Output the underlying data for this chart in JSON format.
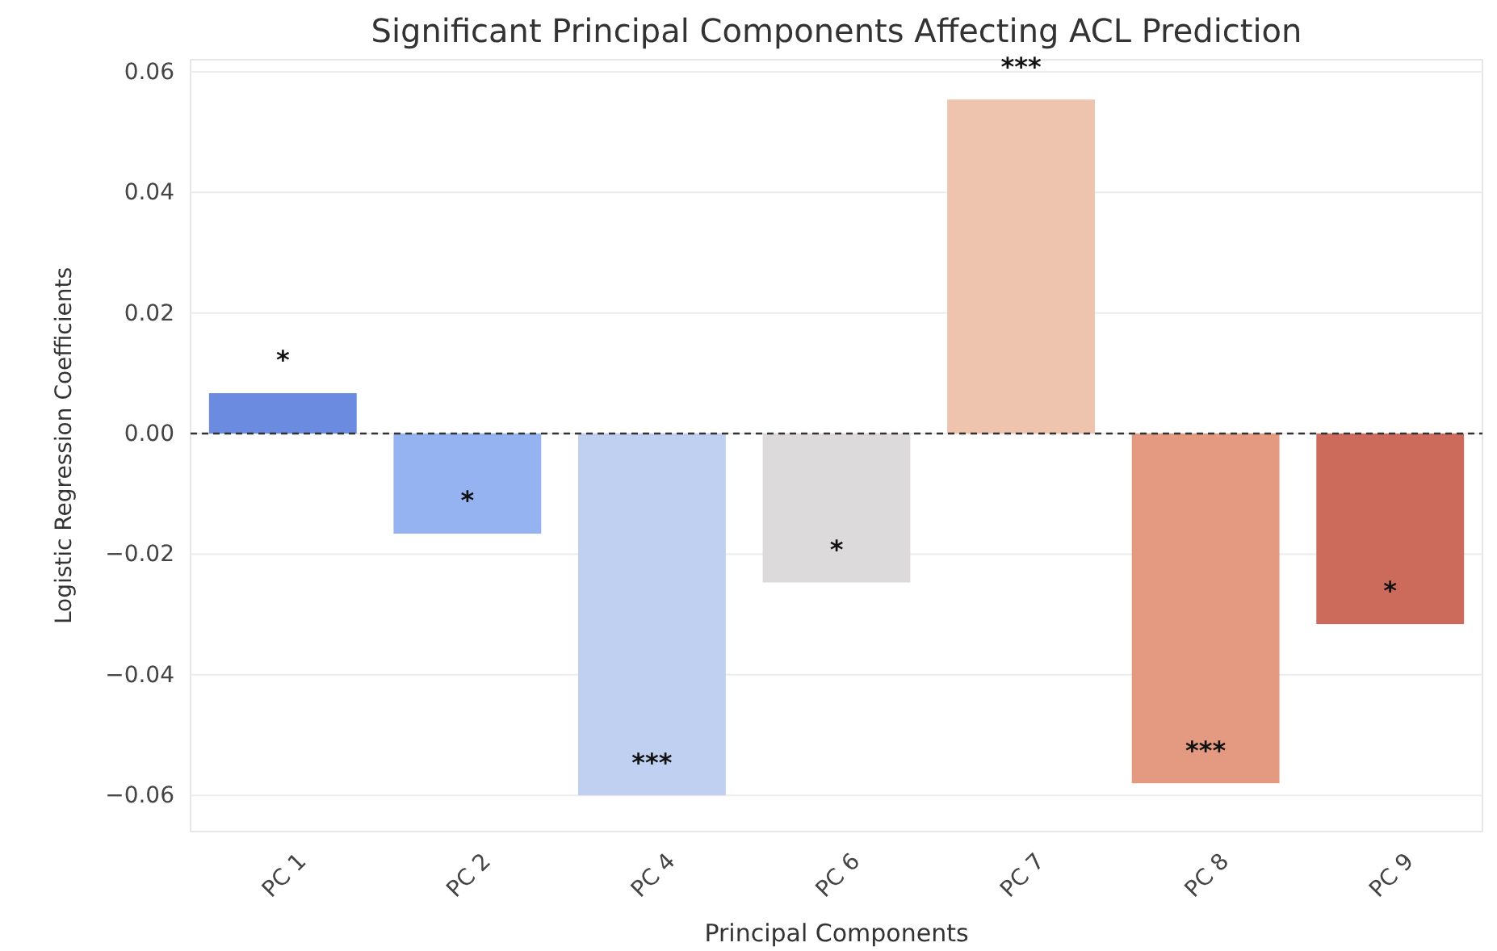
{
  "chart_data": {
    "type": "bar",
    "title": "Significant Principal Components Affecting ACL Prediction",
    "xlabel": "Principal Components",
    "ylabel": "Logistic Regression Coefficients",
    "categories": [
      "PC 1",
      "PC 2",
      "PC 4",
      "PC 6",
      "PC 7",
      "PC 8",
      "PC 9"
    ],
    "values": [
      0.0067,
      -0.0166,
      -0.06,
      -0.0247,
      0.0554,
      -0.058,
      -0.0316
    ],
    "colors": [
      "#6a8be0",
      "#94b3f0",
      "#bfd0f0",
      "#dcdada",
      "#eec4ae",
      "#e39a80",
      "#cc6a5c"
    ],
    "ylim": [
      -0.066,
      0.062
    ],
    "yticks": [
      {
        "value": -0.06,
        "label": "−0.06"
      },
      {
        "value": -0.04,
        "label": "−0.04"
      },
      {
        "value": -0.02,
        "label": "−0.02"
      },
      {
        "value": 0,
        "label": "0.00"
      },
      {
        "value": 0.02,
        "label": "0.02"
      },
      {
        "value": 0.04,
        "label": "0.04"
      },
      {
        "value": 0.06,
        "label": "0.06"
      }
    ],
    "grid": "y",
    "ref_lines": [
      {
        "axis": "y",
        "value": 0,
        "color": "#333333",
        "line_style": "dashed"
      }
    ],
    "annotations": [
      "*",
      "*",
      "***",
      "*",
      "***",
      "***",
      "*"
    ]
  }
}
